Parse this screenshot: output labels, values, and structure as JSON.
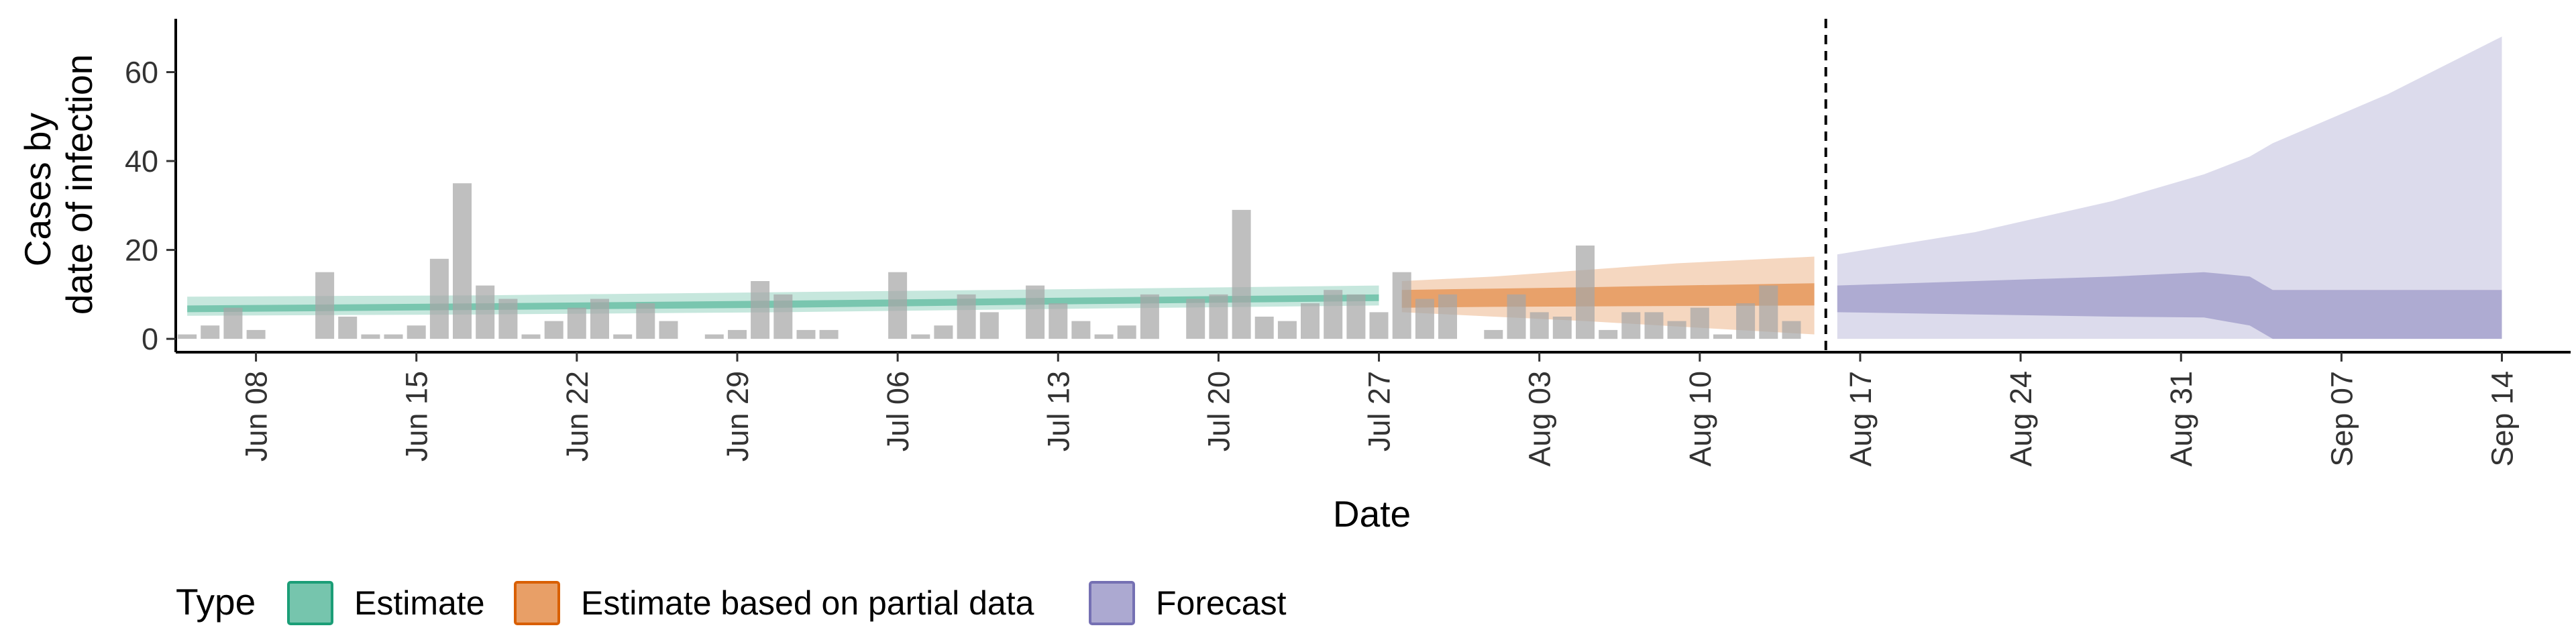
{
  "chart_data": {
    "type": "bar",
    "title": "",
    "xlabel": "Date",
    "ylabel_lines": [
      "Cases by",
      "date of infection"
    ],
    "x_start_date": "2020-06-05",
    "xlim": [
      -0.5,
      104
    ],
    "ylim": [
      -3,
      72
    ],
    "y_ticks": [
      0,
      20,
      40,
      60
    ],
    "x_ticks": [
      {
        "label": "Jun 08",
        "x": 3
      },
      {
        "label": "Jun 15",
        "x": 10
      },
      {
        "label": "Jun 22",
        "x": 17
      },
      {
        "label": "Jun 29",
        "x": 24
      },
      {
        "label": "Jul 06",
        "x": 31
      },
      {
        "label": "Jul 13",
        "x": 38
      },
      {
        "label": "Jul 20",
        "x": 45
      },
      {
        "label": "Jul 27",
        "x": 52
      },
      {
        "label": "Aug 03",
        "x": 59
      },
      {
        "label": "Aug 10",
        "x": 66
      },
      {
        "label": "Aug 17",
        "x": 73
      },
      {
        "label": "Aug 24",
        "x": 80
      },
      {
        "label": "Aug 31",
        "x": 87
      },
      {
        "label": "Sep 07",
        "x": 94
      },
      {
        "label": "Sep 14",
        "x": 101
      }
    ],
    "vline_x": 71.5,
    "reported_cases": [
      1,
      3,
      7,
      2,
      0,
      0,
      15,
      5,
      1,
      1,
      3,
      18,
      35,
      12,
      9,
      1,
      4,
      7,
      9,
      1,
      8,
      4,
      0,
      1,
      2,
      13,
      10,
      2,
      2,
      0,
      0,
      15,
      1,
      3,
      10,
      6,
      0,
      12,
      8,
      4,
      1,
      3,
      10,
      0,
      9,
      10,
      29,
      5,
      4,
      8,
      11,
      10,
      6,
      15,
      9,
      10,
      0,
      2,
      10,
      6,
      5,
      21,
      2,
      6,
      6,
      4,
      7,
      1,
      8,
      12,
      4
    ],
    "bands": [
      {
        "name": "Estimate",
        "color": "#1b9e77",
        "x": [
          0,
          13,
          26,
          39,
          52
        ],
        "outer_lo": [
          5.2,
          5.5,
          6.0,
          6.8,
          7.5
        ],
        "outer_hi": [
          9.5,
          9.8,
          10.5,
          11.2,
          12.0
        ],
        "inner_lo": [
          6.0,
          6.5,
          7.0,
          7.8,
          8.5
        ],
        "inner_hi": [
          7.5,
          8.0,
          8.6,
          9.3,
          10.0
        ]
      },
      {
        "name": "Estimate based on partial data",
        "color": "#d95f02",
        "x": [
          53,
          57,
          61,
          65,
          71
        ],
        "outer_lo": [
          6.0,
          5.0,
          4.0,
          2.8,
          1.0
        ],
        "outer_hi": [
          13.0,
          14.0,
          15.5,
          17.0,
          18.5
        ],
        "inner_lo": [
          7.0,
          7.2,
          7.3,
          7.4,
          7.5
        ],
        "inner_hi": [
          11.0,
          11.3,
          11.6,
          12.0,
          12.5
        ]
      },
      {
        "name": "Forecast",
        "color": "#7570b3",
        "x": [
          72,
          78,
          84,
          88,
          90,
          91,
          96,
          101
        ],
        "outer_lo": [
          0,
          0,
          0,
          0,
          0,
          0,
          0,
          0
        ],
        "outer_hi": [
          19,
          24,
          31,
          37,
          41,
          44,
          55,
          68
        ],
        "inner_lo": [
          6.0,
          5.5,
          5.0,
          4.8,
          3.0,
          0.0,
          0.0,
          0.0
        ],
        "inner_hi": [
          12.0,
          13.0,
          14.0,
          15.0,
          14.0,
          11.0,
          11.0,
          11.0
        ]
      }
    ],
    "legend": {
      "title": "Type",
      "position": "bottom",
      "items": [
        {
          "label": "Estimate",
          "color": "#1b9e77"
        },
        {
          "label": "Estimate based on partial data",
          "color": "#d95f02"
        },
        {
          "label": "Forecast",
          "color": "#7570b3"
        }
      ]
    }
  }
}
